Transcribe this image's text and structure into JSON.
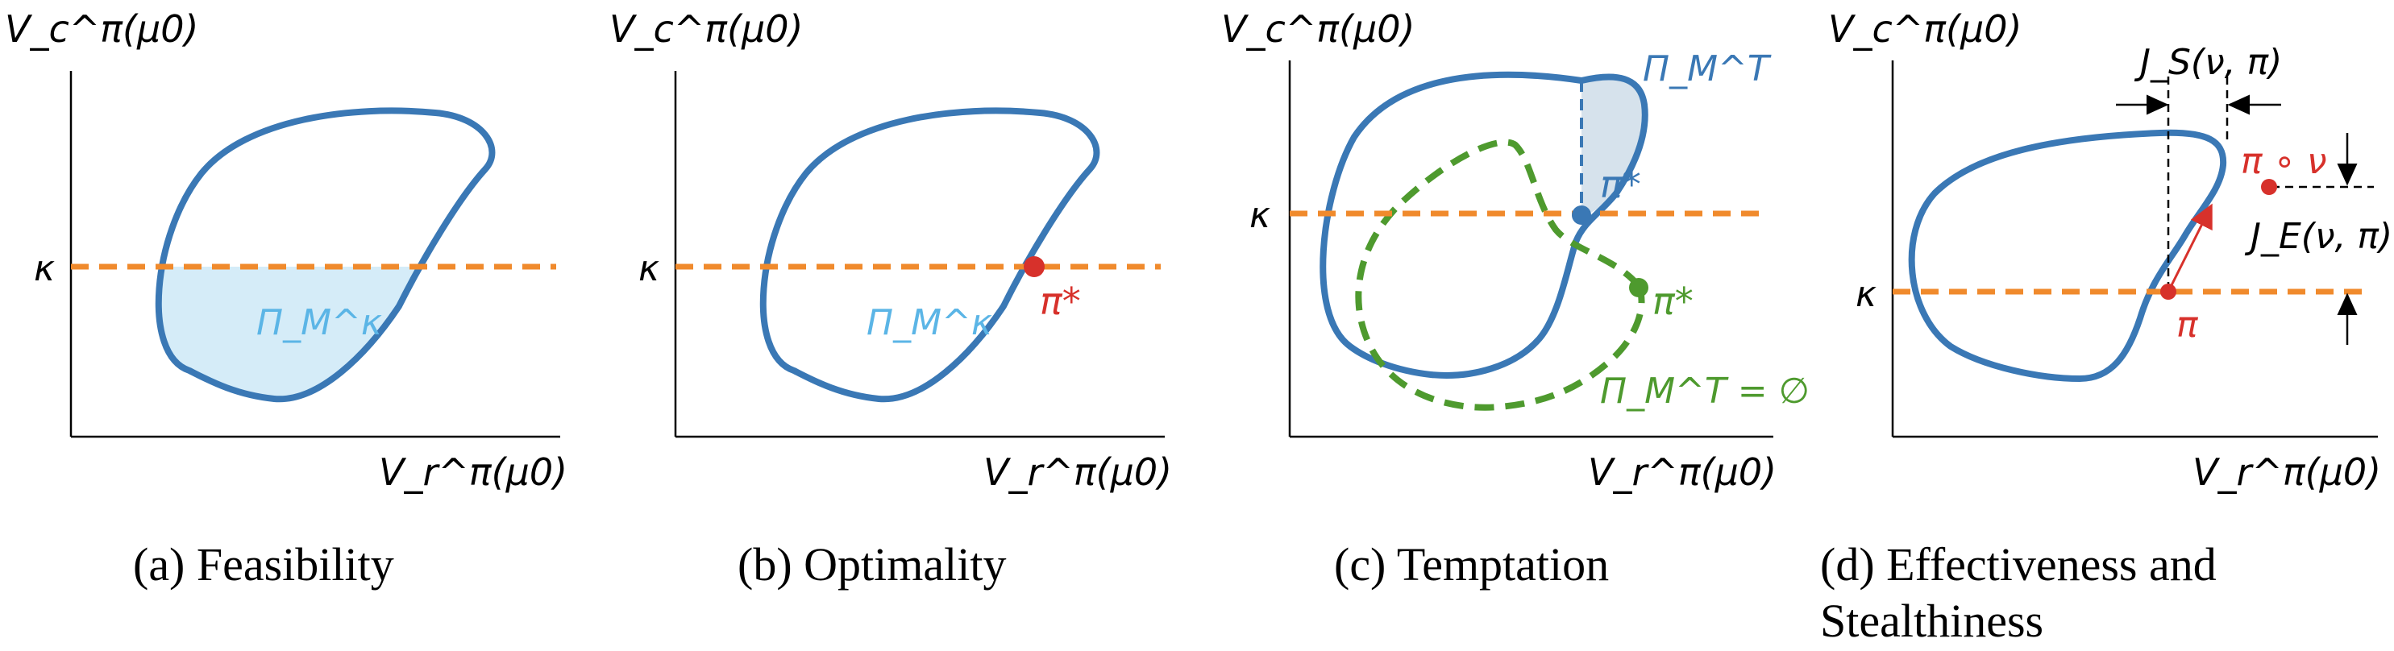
{
  "panels": [
    {
      "caption": "(a) Feasibility",
      "y_label": "V_c^π(μ0)",
      "x_label": "V_r^π(μ0)",
      "kappa_label": "κ",
      "region_label": "Π_M^κ"
    },
    {
      "caption": "(b) Optimality",
      "y_label": "V_c^π(μ0)",
      "x_label": "V_r^π(μ0)",
      "kappa_label": "κ",
      "region_label": "Π_M^κ",
      "point_label": "π*"
    },
    {
      "caption": "(c) Temptation",
      "y_label": "V_c^π(μ0)",
      "x_label": "V_r^π(μ0)",
      "kappa_label": "κ",
      "region_label": "Π_M^T",
      "point_label_blue": "π*",
      "point_label_green": "π*",
      "empty_label": "Π_M^T = ∅"
    },
    {
      "caption_line1": "(d) Effectiveness and",
      "caption_line2": "Stealthiness",
      "y_label": "V_c^π(μ0)",
      "x_label": "V_r^π(μ0)",
      "kappa_label": "κ",
      "js_label": "J_S(ν, π)",
      "je_label": "J_E(ν, π)",
      "pi_label": "π",
      "pinu_label": "π ∘ ν"
    }
  ],
  "colors": {
    "curve_blue": "#3a78b5",
    "fill_light_blue": "#d5ecf8",
    "fill_gray_blue": "#d6e2ec",
    "kappa_orange": "#f08a2c",
    "green": "#4e9a2e",
    "red": "#d7312b",
    "region_text_blue": "#5bb5e6"
  }
}
